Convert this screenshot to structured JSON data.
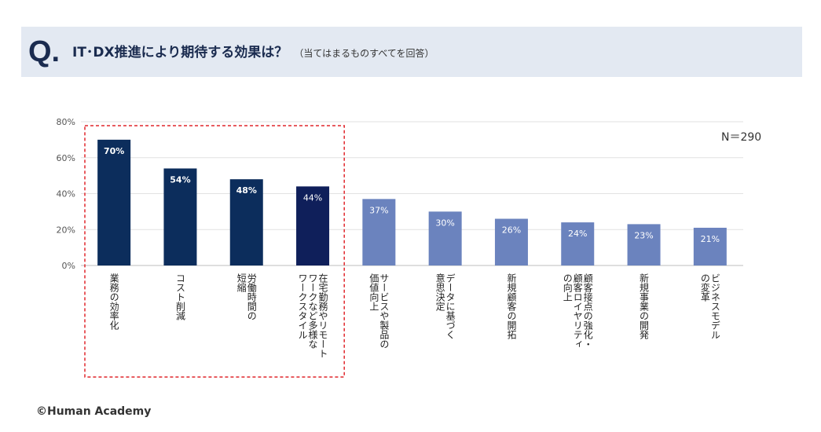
{
  "header": {
    "q_mark": "Q.",
    "question": "IT･DX推進により期待する効果は？",
    "note": "（当てはまるものすべてを回答）"
  },
  "n_label": "N＝290",
  "footer": {
    "copyright": "©Human Academy"
  },
  "colors": {
    "dark_bar": "#0c2d5c",
    "highlight_bar": "#0f1f5a",
    "light_bar": "#6b83be",
    "banner": "#e3e9f2",
    "highlight_box": "#e0262c"
  },
  "chart_data": {
    "type": "bar",
    "categories": [
      "業務の効率化",
      "コスト削減",
      "労働時間の短縮",
      "在宅勤務やリモートワークなど多様なワークスタイル",
      "サービスや製品の価値向上",
      "データに基づく意思決定",
      "新規顧客の開拓",
      "顧客接点の強化・顧客ロイヤリティの向上",
      "新規事業の開発",
      "ビジネスモデルの変革"
    ],
    "category_lines": [
      [
        "業務の効率化"
      ],
      [
        "コスト削減"
      ],
      [
        "労働時間の",
        "短縮"
      ],
      [
        "在宅勤務やリモート",
        "ワークなど多様な",
        "ワークスタイル"
      ],
      [
        "サービスや製品の",
        "価値向上"
      ],
      [
        "データに基づく",
        "意思決定"
      ],
      [
        "新規顧客の開拓"
      ],
      [
        "顧客接点の強化・",
        "顧客ロイヤリティ",
        "の向上"
      ],
      [
        "新規事業の開発"
      ],
      [
        "ビジネスモデル",
        "の変革"
      ]
    ],
    "values": [
      70,
      54,
      48,
      44,
      37,
      30,
      26,
      24,
      23,
      21
    ],
    "data_labels": [
      "70%",
      "54%",
      "48%",
      "44%",
      "37%",
      "30%",
      "26%",
      "24%",
      "23%",
      "21%"
    ],
    "ylim": [
      0,
      80
    ],
    "yticks": [
      0,
      20,
      40,
      60,
      80
    ],
    "ytick_labels": [
      "0%",
      "20%",
      "40%",
      "60%",
      "80%"
    ],
    "grid": true,
    "highlighted_categories": [
      0,
      1,
      2,
      3
    ],
    "title": "",
    "xlabel": "",
    "ylabel": ""
  }
}
